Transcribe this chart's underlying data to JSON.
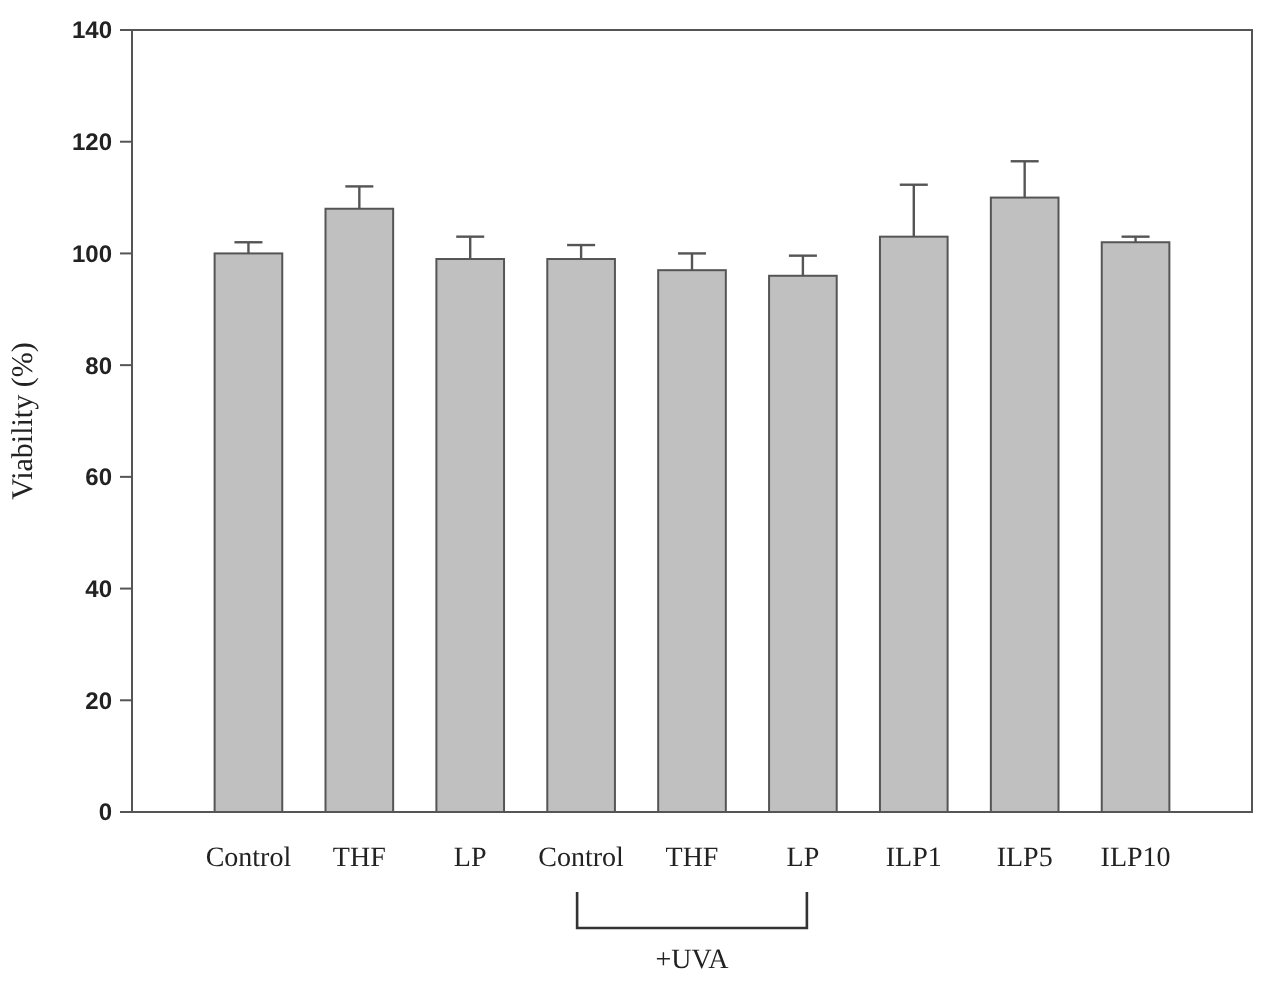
{
  "chart_data": {
    "type": "bar",
    "ylabel": "Viability (%)",
    "categories": [
      "Control",
      "THF",
      "LP",
      "Control",
      "THF",
      "LP",
      "ILP1",
      "ILP5",
      "ILP10"
    ],
    "values": [
      100,
      108,
      99,
      99,
      97,
      96,
      103,
      110,
      102
    ],
    "errors": [
      [
        100,
        102
      ],
      [
        108,
        112
      ],
      [
        99,
        103
      ],
      [
        99,
        101.5
      ],
      [
        97,
        100
      ],
      [
        96,
        99.6
      ],
      [
        103,
        112.3
      ],
      [
        110,
        116.5
      ],
      [
        102,
        103
      ]
    ],
    "color": "#c0c0c0",
    "ylim": [
      0,
      140
    ],
    "yticks": [
      0,
      20,
      40,
      60,
      80,
      100,
      120,
      140
    ],
    "grid": false,
    "annotations": [
      "+UVA"
    ]
  }
}
